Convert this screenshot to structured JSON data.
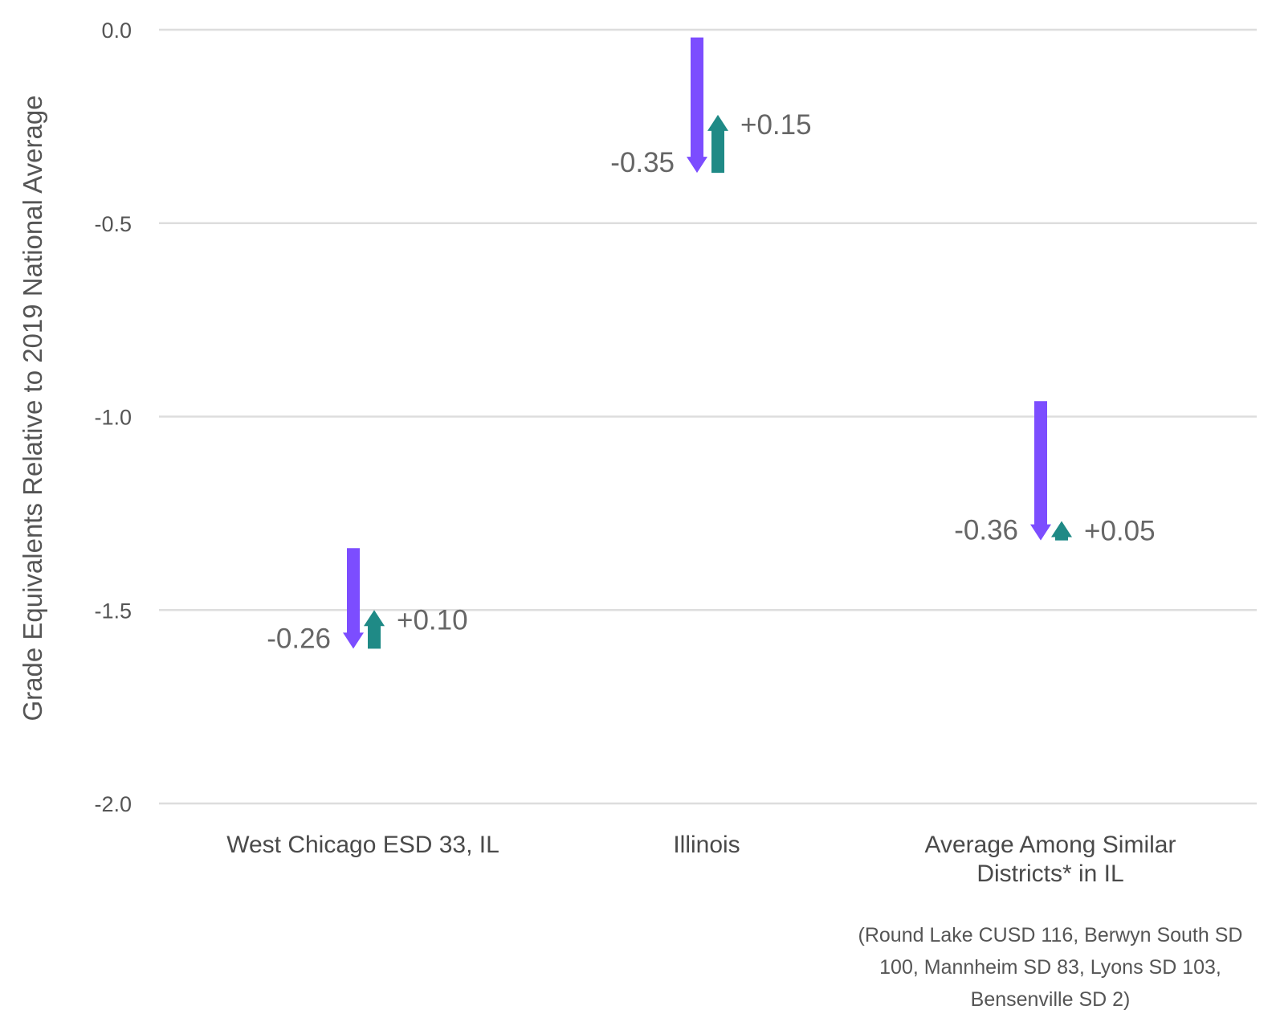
{
  "chart_data": {
    "type": "arrow-change",
    "ylabel": "Grade Equivalents Relative to 2019 National Average",
    "ylim": [
      -2.0,
      0.0
    ],
    "yticks": [
      0.0,
      -0.5,
      -1.0,
      -1.5,
      -2.0
    ],
    "ytick_labels": [
      "0.0",
      "-0.5",
      "-1.0",
      "-1.5",
      "-2.0"
    ],
    "grid": true,
    "colors": {
      "decline": "#7c4dff",
      "recovery": "#1f8a86",
      "grid": "#dddddd"
    },
    "categories": [
      {
        "label_lines": [
          "West Chicago ESD 33, IL"
        ],
        "start": -1.34,
        "decline": -0.26,
        "decline_label": "-0.26",
        "recovery": 0.1,
        "recovery_label": "+0.10",
        "note_lines": []
      },
      {
        "label_lines": [
          "Illinois"
        ],
        "start": -0.02,
        "decline": -0.35,
        "decline_label": "-0.35",
        "recovery": 0.15,
        "recovery_label": "+0.15",
        "note_lines": []
      },
      {
        "label_lines": [
          "Average Among Similar",
          "Districts* in IL"
        ],
        "start": -0.96,
        "decline": -0.36,
        "decline_label": "-0.36",
        "recovery": 0.05,
        "recovery_label": "+0.05",
        "note_lines": [
          "(Round Lake CUSD 116, Berwyn South SD",
          "100, Mannheim SD 83, Lyons SD 103,",
          "Bensenville SD 2)"
        ]
      }
    ]
  }
}
